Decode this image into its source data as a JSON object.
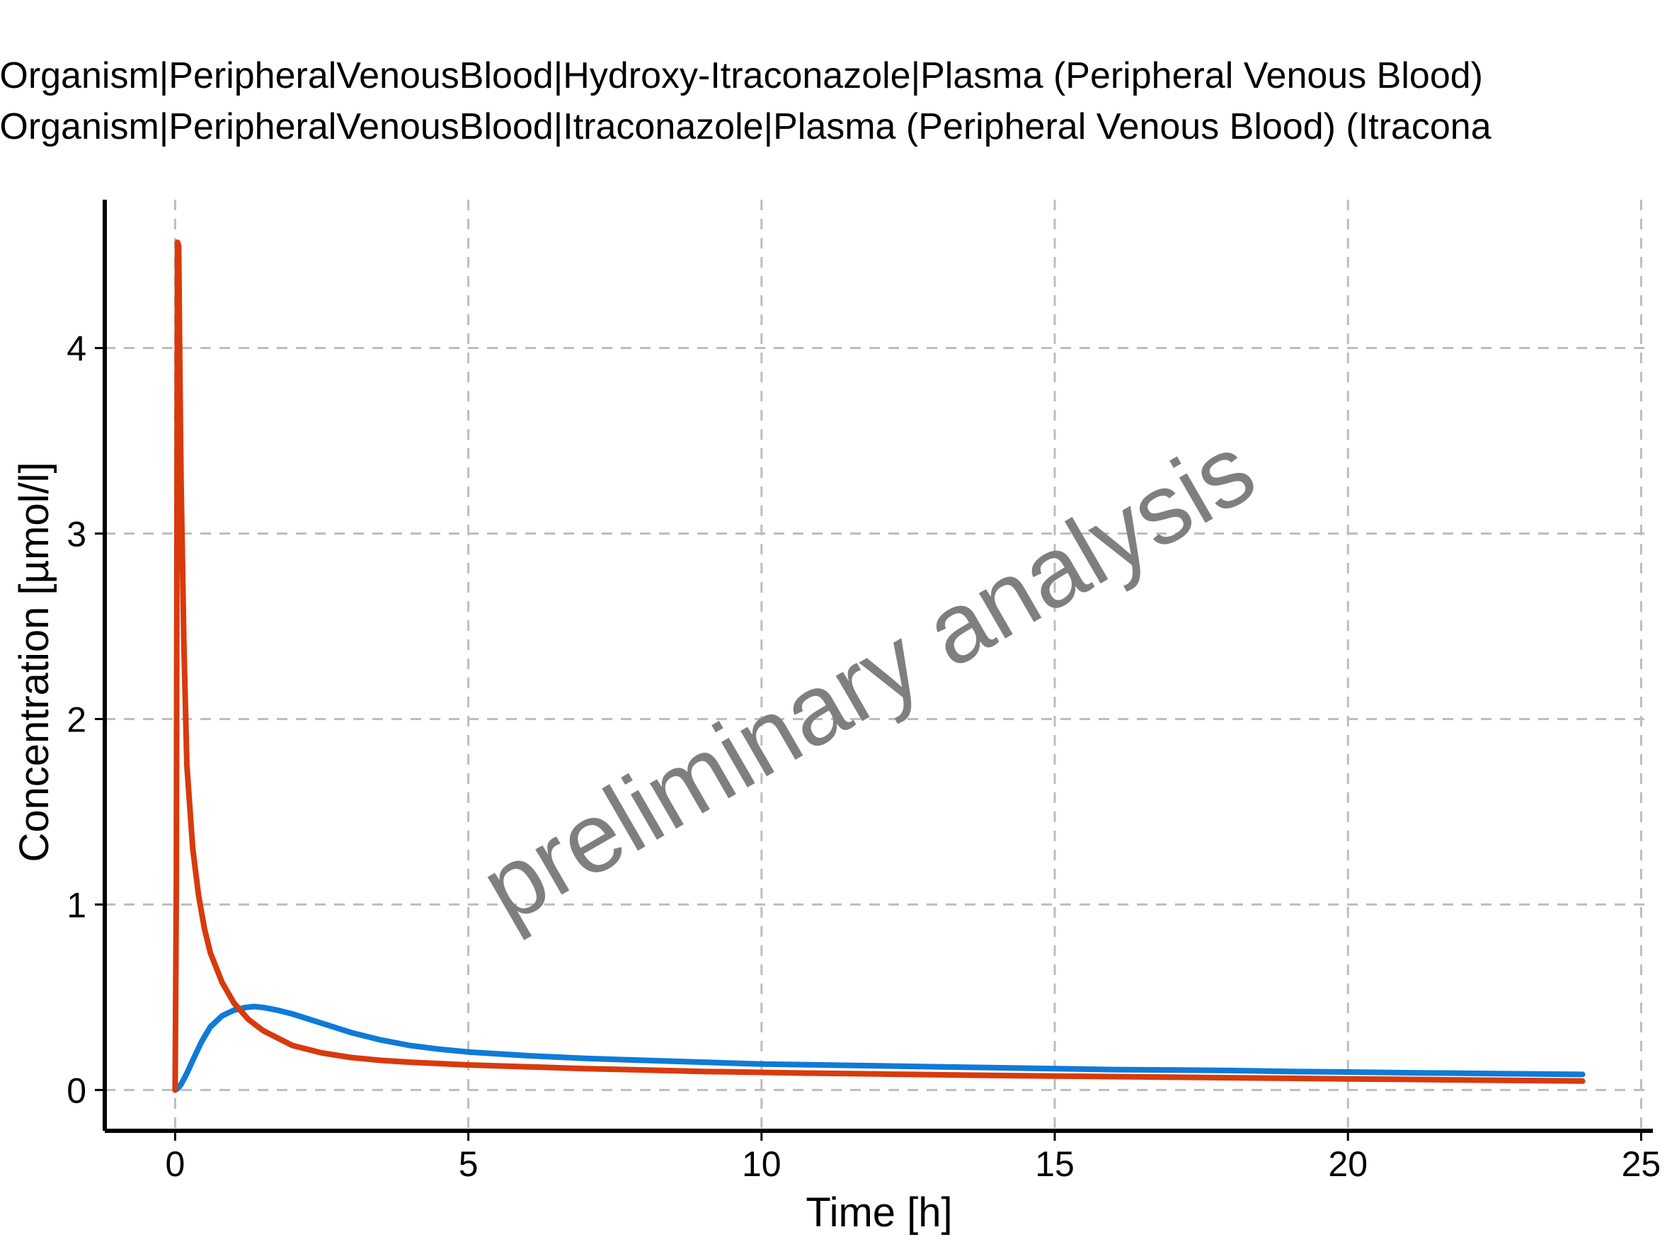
{
  "chart_data": {
    "type": "line",
    "title": "",
    "xlabel": "Time [h]",
    "ylabel": "Concentration [µmol/l]",
    "xlim": [
      -1.2,
      25.2
    ],
    "ylim": [
      -0.22,
      4.8
    ],
    "xticks": [
      0,
      5,
      10,
      15,
      20,
      25
    ],
    "yticks": [
      0,
      1,
      2,
      3,
      4
    ],
    "grid": true,
    "legend_position": "top",
    "watermark": "preliminary analysis",
    "series": [
      {
        "name": "d Organism|PeripheralVenousBlood|Hydroxy-Itraconazole|Plasma (Peripheral Venous Blood)",
        "color": "#0f7ad8",
        "x": [
          0,
          0.05,
          0.1,
          0.2,
          0.3,
          0.45,
          0.6,
          0.8,
          1.0,
          1.2,
          1.35,
          1.5,
          1.75,
          2.0,
          2.5,
          3.0,
          3.5,
          4.0,
          4.5,
          5.0,
          6.0,
          7.0,
          8.0,
          9.0,
          10.0,
          11.0,
          12.0,
          13.0,
          14.0,
          15.0,
          16.0,
          17.0,
          18.0,
          19.0,
          20.0,
          21.0,
          22.0,
          23.0,
          24.0
        ],
        "y": [
          0,
          0.01,
          0.03,
          0.09,
          0.16,
          0.26,
          0.34,
          0.4,
          0.43,
          0.445,
          0.45,
          0.445,
          0.43,
          0.41,
          0.36,
          0.31,
          0.27,
          0.24,
          0.22,
          0.205,
          0.185,
          0.17,
          0.16,
          0.15,
          0.14,
          0.135,
          0.13,
          0.125,
          0.12,
          0.115,
          0.11,
          0.108,
          0.105,
          0.1,
          0.097,
          0.093,
          0.09,
          0.087,
          0.084
        ]
      },
      {
        "name": "d Organism|PeripheralVenousBlood|Itraconazole|Plasma (Peripheral Venous Blood) (Itracona",
        "color": "#d83a0c",
        "x": [
          0,
          0.02,
          0.04,
          0.06,
          0.08,
          0.1,
          0.15,
          0.2,
          0.3,
          0.4,
          0.5,
          0.6,
          0.8,
          1.0,
          1.25,
          1.5,
          2.0,
          2.5,
          3.0,
          3.5,
          4.0,
          5.0,
          6.0,
          7.0,
          8.0,
          9.0,
          10.0,
          11.0,
          12.0,
          13.0,
          14.0,
          15.0,
          16.0,
          17.0,
          18.0,
          19.0,
          20.0,
          21.0,
          22.0,
          23.0,
          24.0
        ],
        "y": [
          0,
          1.1,
          4.57,
          4.55,
          3.9,
          3.3,
          2.4,
          1.75,
          1.3,
          1.05,
          0.87,
          0.74,
          0.58,
          0.47,
          0.38,
          0.32,
          0.24,
          0.2,
          0.175,
          0.16,
          0.15,
          0.135,
          0.125,
          0.115,
          0.108,
          0.1,
          0.095,
          0.09,
          0.086,
          0.082,
          0.078,
          0.075,
          0.072,
          0.069,
          0.066,
          0.063,
          0.06,
          0.057,
          0.054,
          0.051,
          0.048
        ]
      }
    ]
  }
}
